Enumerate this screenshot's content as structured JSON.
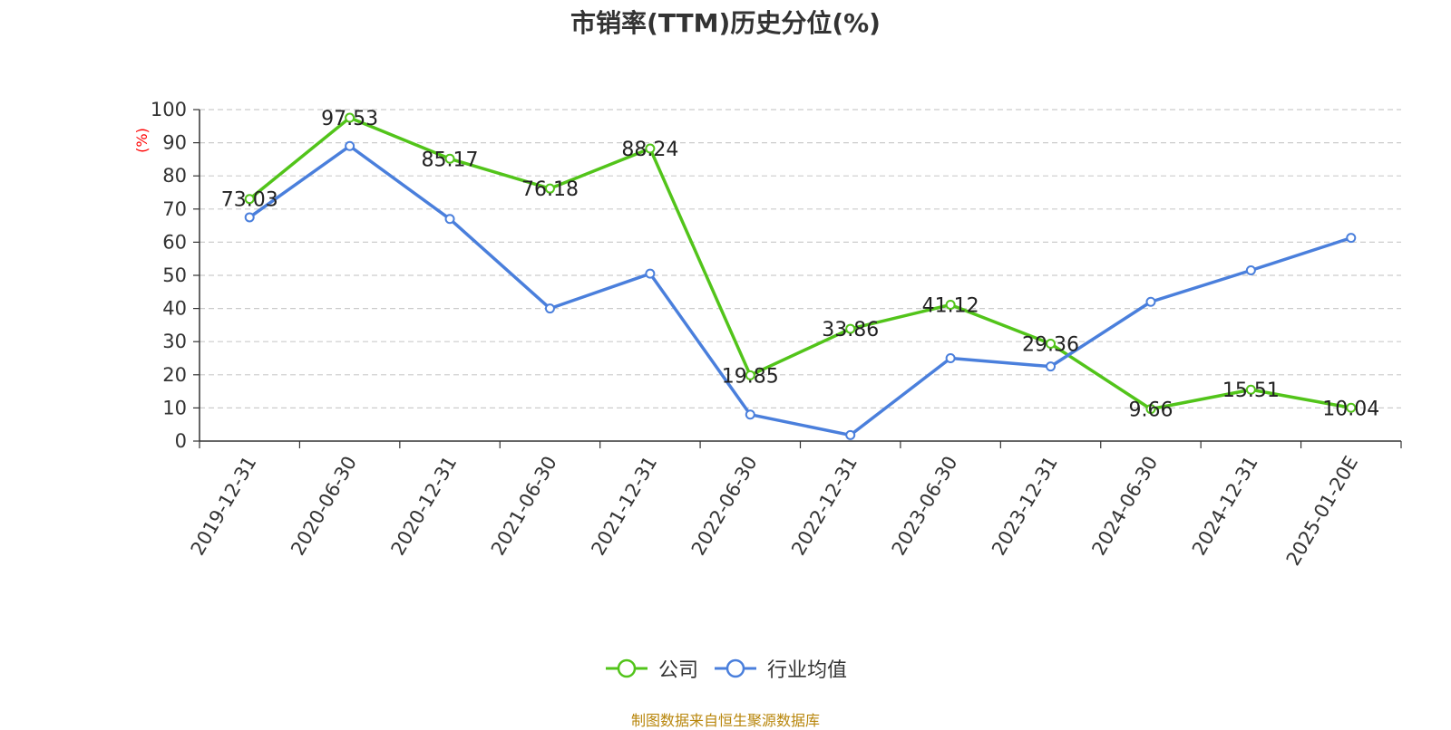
{
  "chart_data": {
    "type": "line",
    "title": "市销率(TTM)历史分位(%)",
    "ylabel": "(%)",
    "xlabel": "",
    "ylim": [
      0,
      100
    ],
    "yticks": [
      0,
      10,
      20,
      30,
      40,
      50,
      60,
      70,
      80,
      90,
      100
    ],
    "grid": true,
    "legend_position": "bottom",
    "categories": [
      "2019-12-31",
      "2020-06-30",
      "2020-12-31",
      "2021-06-30",
      "2021-12-31",
      "2022-06-30",
      "2022-12-31",
      "2023-06-30",
      "2023-12-31",
      "2024-06-30",
      "2024-12-31",
      "2025-01-20E"
    ],
    "series": [
      {
        "name": "公司",
        "color": "#52c41a",
        "show_labels": true,
        "values": [
          73.03,
          97.53,
          85.17,
          76.18,
          88.24,
          19.85,
          33.86,
          41.12,
          29.36,
          9.66,
          15.51,
          10.04
        ]
      },
      {
        "name": "行业均值",
        "color": "#4a7fdc",
        "show_labels": false,
        "values": [
          67.5,
          89.0,
          67.0,
          40.0,
          50.5,
          8.0,
          1.8,
          25.0,
          22.5,
          42.0,
          51.5,
          61.3
        ]
      }
    ]
  },
  "footer": {
    "source": "制图数据来自恒生聚源数据库"
  }
}
